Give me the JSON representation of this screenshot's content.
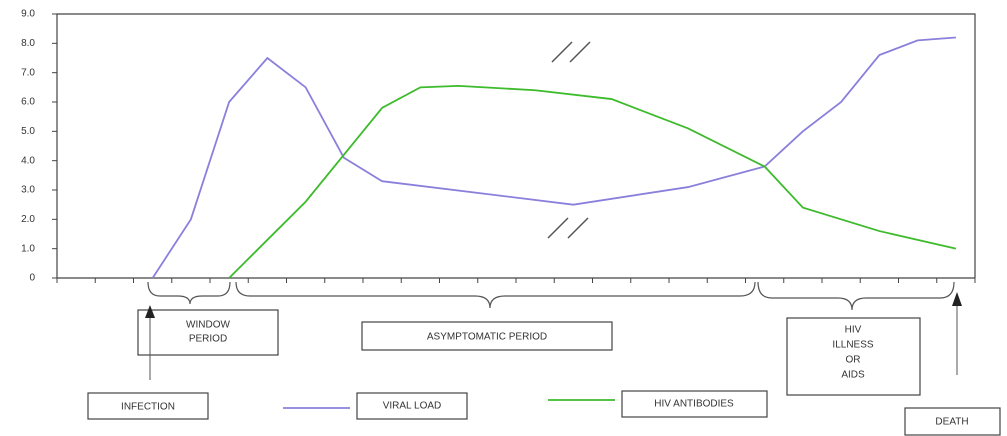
{
  "chart_data": {
    "type": "line",
    "xlim": [
      0,
      24
    ],
    "xticks": [
      0,
      1,
      2,
      3,
      4,
      5,
      6,
      7,
      8,
      9,
      10,
      11,
      12,
      13,
      14,
      15,
      16,
      17,
      18,
      19,
      20,
      21,
      22,
      23,
      24
    ],
    "ylim": [
      0,
      9
    ],
    "yticks": [
      0,
      {
        "value": 1,
        "label": "1.0"
      },
      {
        "value": 2,
        "label": "2.0"
      },
      {
        "value": 3,
        "label": "3.0"
      },
      {
        "value": 4,
        "label": "4.0"
      },
      {
        "value": 5,
        "label": "5.0"
      },
      {
        "value": 6,
        "label": "6.0"
      },
      {
        "value": 7,
        "label": "7.0"
      },
      {
        "value": 8,
        "label": "8.0"
      },
      {
        "value": 9,
        "label": "9.0"
      }
    ],
    "grid": false,
    "series": [
      {
        "name": "VIRAL LOAD",
        "color": "#8a80dc",
        "x": [
          2.5,
          3.5,
          4.5,
          5.5,
          6.5,
          7.5,
          8.5,
          13.5,
          16.5,
          18.5,
          19.5,
          20.5,
          21.5,
          22.5,
          23.5
        ],
        "values": [
          0,
          2.0,
          6.0,
          7.5,
          6.5,
          4.1,
          3.3,
          2.5,
          3.1,
          3.8,
          5.0,
          6.0,
          7.6,
          8.1,
          8.2
        ]
      },
      {
        "name": "HIV ANTIBODIES",
        "color": "#3dbb2c",
        "x": [
          4.5,
          6.5,
          8.5,
          9.5,
          10.5,
          12.5,
          14.5,
          16.5,
          18.5,
          19.5,
          21.5,
          23.5
        ],
        "values": [
          0,
          2.6,
          5.8,
          6.5,
          6.55,
          6.4,
          6.1,
          5.1,
          3.8,
          2.4,
          1.6,
          1.0
        ]
      }
    ],
    "annotations": [
      [
        "WINDOW",
        "PERIOD"
      ],
      [
        "ASYMPTOMATIC PERIOD"
      ],
      [
        "HIV",
        "ILLNESS",
        "OR",
        "AIDS"
      ],
      [
        "INFECTION"
      ],
      [
        "DEATH"
      ]
    ]
  }
}
